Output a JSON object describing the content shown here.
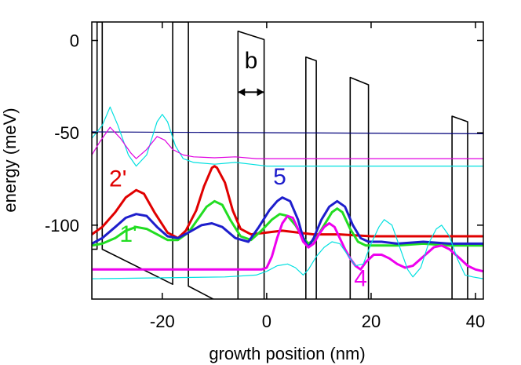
{
  "chart_data": {
    "type": "line",
    "title": "",
    "xlabel": "growth position (nm)",
    "ylabel": "energy (meV)",
    "xlim": [
      -33.5,
      41.5
    ],
    "ylim": [
      -140,
      10
    ],
    "x_ticks": [
      -20,
      0,
      20,
      40
    ],
    "x_tick_labels": [
      "-20",
      "0",
      "20",
      "40"
    ],
    "y_ticks": [
      0,
      -50,
      -100
    ],
    "y_tick_labels": [
      "0",
      "-50",
      "-100"
    ],
    "grid": false,
    "legend": "none",
    "annotations": {
      "width_label": "b",
      "state_labels": [
        {
          "text": "2'",
          "x": -28.5,
          "y": -79,
          "color": "#e00000"
        },
        {
          "text": "1'",
          "x": -26.5,
          "y": -109,
          "color": "#22dd22"
        },
        {
          "text": "5",
          "x": 2.5,
          "y": -78,
          "color": "#1e1ecc"
        },
        {
          "text": "4",
          "x": 18.0,
          "y": -133,
          "color": "#ee00ee"
        }
      ]
    },
    "series": [
      {
        "role": "conduction band profile",
        "color": "#000000",
        "points": [
          [
            -33.5,
            -140
          ],
          [
            -33.5,
            -113
          ],
          [
            -32.5,
            -113
          ],
          [
            -32.5,
            10
          ],
          [
            -31.5,
            10
          ],
          [
            -31.5,
            -113
          ],
          [
            -18,
            -132
          ],
          [
            -18,
            10
          ],
          [
            -15,
            10
          ],
          [
            -15,
            -133
          ],
          [
            -5.5,
            -147
          ],
          [
            -5.5,
            5
          ],
          [
            -0.5,
            0.5
          ],
          [
            -0.5,
            -150
          ],
          [
            7.5,
            -150
          ],
          [
            7.5,
            -9
          ],
          [
            9.5,
            -11
          ],
          [
            9.5,
            -150
          ],
          [
            16,
            -150
          ],
          [
            16,
            -20
          ],
          [
            19.5,
            -24
          ],
          [
            19.5,
            -150
          ],
          [
            35.5,
            -150
          ],
          [
            35.5,
            -41
          ],
          [
            38.5,
            -44
          ],
          [
            38.5,
            -150
          ]
        ]
      },
      {
        "role": "level ~ -50 meV",
        "color": "#00007a",
        "points": [
          [
            -33.5,
            -49.5
          ],
          [
            41.5,
            -50.5
          ]
        ]
      },
      {
        "role": "level ~ -69 meV",
        "color": "#00e0e0",
        "points": [
          [
            -33.5,
            -53
          ],
          [
            -31.5,
            -46
          ],
          [
            -30,
            -36
          ],
          [
            -28.5,
            -46
          ],
          [
            -26.5,
            -62
          ],
          [
            -25,
            -68
          ],
          [
            -23,
            -62
          ],
          [
            -21,
            -44
          ],
          [
            -20,
            -40
          ],
          [
            -19,
            -44
          ],
          [
            -17.5,
            -57
          ],
          [
            -16,
            -64
          ],
          [
            -14,
            -66
          ],
          [
            -10,
            -67
          ],
          [
            -6,
            -66
          ],
          [
            -3,
            -67
          ],
          [
            0,
            -68
          ],
          [
            41.5,
            -68
          ]
        ]
      },
      {
        "role": "level ~ -64 meV",
        "color": "#e000e0",
        "points": [
          [
            -33.5,
            -62
          ],
          [
            -32,
            -55
          ],
          [
            -30,
            -47
          ],
          [
            -28,
            -53
          ],
          [
            -26,
            -61
          ],
          [
            -25,
            -64
          ],
          [
            -23,
            -59
          ],
          [
            -21,
            -52
          ],
          [
            -19.5,
            -54
          ],
          [
            -18,
            -59
          ],
          [
            -16,
            -62
          ],
          [
            -14,
            -63
          ],
          [
            -10,
            -63.5
          ],
          [
            -6,
            -63
          ],
          [
            -2,
            -64
          ],
          [
            0,
            -64
          ],
          [
            41.5,
            -64
          ]
        ]
      },
      {
        "role": "state 2'",
        "color": "#e00000",
        "points": [
          [
            -33.5,
            -105
          ],
          [
            -31.5,
            -101
          ],
          [
            -29,
            -93
          ],
          [
            -27,
            -85
          ],
          [
            -25,
            -81
          ],
          [
            -23.5,
            -83
          ],
          [
            -21.5,
            -93
          ],
          [
            -19,
            -104
          ],
          [
            -17,
            -107
          ],
          [
            -15.5,
            -103
          ],
          [
            -13.5,
            -92
          ],
          [
            -12,
            -79
          ],
          [
            -10.5,
            -69
          ],
          [
            -10,
            -68
          ],
          [
            -9.5,
            -69
          ],
          [
            -8,
            -77
          ],
          [
            -6.5,
            -92
          ],
          [
            -5,
            -102
          ],
          [
            -3,
            -105
          ],
          [
            0,
            -104
          ],
          [
            3,
            -103
          ],
          [
            6,
            -104
          ],
          [
            9,
            -105
          ],
          [
            14,
            -105
          ],
          [
            20,
            -106
          ],
          [
            30,
            -106
          ],
          [
            41.5,
            -106
          ]
        ]
      },
      {
        "role": "state 1'",
        "color": "#22dd22",
        "points": [
          [
            -33.5,
            -111
          ],
          [
            -31.5,
            -110
          ],
          [
            -29,
            -107
          ],
          [
            -27,
            -103
          ],
          [
            -25,
            -101
          ],
          [
            -23,
            -102
          ],
          [
            -21,
            -105
          ],
          [
            -19,
            -108
          ],
          [
            -17,
            -108
          ],
          [
            -15,
            -104
          ],
          [
            -13,
            -96
          ],
          [
            -11.5,
            -90
          ],
          [
            -10,
            -87
          ],
          [
            -8.5,
            -89
          ],
          [
            -7,
            -97
          ],
          [
            -5,
            -106
          ],
          [
            -3,
            -108
          ],
          [
            -1,
            -103
          ],
          [
            1,
            -97
          ],
          [
            2.5,
            -94
          ],
          [
            4,
            -95
          ],
          [
            5.5,
            -100
          ],
          [
            7,
            -107
          ],
          [
            8,
            -110
          ],
          [
            9.5,
            -107
          ],
          [
            11,
            -100
          ],
          [
            12.5,
            -93
          ],
          [
            13.5,
            -91
          ],
          [
            14.5,
            -93
          ],
          [
            16,
            -102
          ],
          [
            17.5,
            -109
          ],
          [
            19,
            -111
          ],
          [
            21,
            -111
          ],
          [
            25,
            -111
          ],
          [
            30,
            -110
          ],
          [
            35,
            -111
          ],
          [
            41.5,
            -111
          ]
        ]
      },
      {
        "role": "state 5",
        "color": "#1e1ecc",
        "points": [
          [
            -33.5,
            -110
          ],
          [
            -31.5,
            -107
          ],
          [
            -29,
            -101
          ],
          [
            -27,
            -96
          ],
          [
            -25,
            -94
          ],
          [
            -23,
            -95
          ],
          [
            -21,
            -101
          ],
          [
            -19,
            -106
          ],
          [
            -17,
            -107
          ],
          [
            -15,
            -104
          ],
          [
            -12.5,
            -100
          ],
          [
            -10.5,
            -99
          ],
          [
            -8.5,
            -101
          ],
          [
            -6,
            -107
          ],
          [
            -3.5,
            -109
          ],
          [
            -1.5,
            -101
          ],
          [
            0.5,
            -92
          ],
          [
            2,
            -87
          ],
          [
            3,
            -85
          ],
          [
            4.5,
            -87
          ],
          [
            6,
            -97
          ],
          [
            7,
            -107
          ],
          [
            8,
            -112
          ],
          [
            9,
            -107
          ],
          [
            10.5,
            -97
          ],
          [
            12,
            -90
          ],
          [
            13.5,
            -87
          ],
          [
            15,
            -90
          ],
          [
            16.5,
            -100
          ],
          [
            18,
            -107
          ],
          [
            19.5,
            -109
          ],
          [
            22,
            -109
          ],
          [
            25,
            -110
          ],
          [
            30,
            -109
          ],
          [
            35,
            -110
          ],
          [
            41.5,
            -110
          ]
        ]
      },
      {
        "role": "state 4",
        "color": "#ee00ee",
        "points": [
          [
            -33.5,
            -124
          ],
          [
            -5,
            -124
          ],
          [
            -1,
            -124
          ],
          [
            0,
            -123
          ],
          [
            1,
            -117
          ],
          [
            2,
            -107
          ],
          [
            3,
            -99
          ],
          [
            4,
            -95
          ],
          [
            5,
            -96
          ],
          [
            6,
            -102
          ],
          [
            7,
            -109
          ],
          [
            8,
            -112
          ],
          [
            9,
            -110
          ],
          [
            10,
            -105
          ],
          [
            11,
            -101
          ],
          [
            12,
            -99
          ],
          [
            13,
            -101
          ],
          [
            14,
            -107
          ],
          [
            15,
            -113
          ],
          [
            16,
            -118
          ],
          [
            17,
            -122
          ],
          [
            18,
            -124
          ],
          [
            19,
            -120
          ],
          [
            20.5,
            -116
          ],
          [
            22,
            -116
          ],
          [
            23.5,
            -118
          ],
          [
            25,
            -121
          ],
          [
            26.5,
            -123
          ],
          [
            28,
            -122
          ],
          [
            30,
            -117
          ],
          [
            32,
            -112
          ],
          [
            33.5,
            -111
          ],
          [
            35,
            -113
          ],
          [
            37,
            -118
          ],
          [
            38.5,
            -122
          ],
          [
            40,
            -124
          ],
          [
            41.5,
            -125
          ]
        ]
      },
      {
        "role": "level ~ -129 meV",
        "color": "#00e0e0",
        "points": [
          [
            -33.5,
            -129
          ],
          [
            -8,
            -128
          ],
          [
            -2,
            -127
          ],
          [
            0,
            -125
          ],
          [
            2,
            -122
          ],
          [
            4,
            -121
          ],
          [
            5.5,
            -123
          ],
          [
            7,
            -127
          ],
          [
            8,
            -124
          ],
          [
            9.5,
            -117
          ],
          [
            11,
            -112
          ],
          [
            12.5,
            -109
          ],
          [
            14,
            -110
          ],
          [
            15.5,
            -116
          ],
          [
            17,
            -122
          ],
          [
            18.5,
            -121
          ],
          [
            20,
            -110
          ],
          [
            21.5,
            -101
          ],
          [
            22.5,
            -97
          ],
          [
            24,
            -100
          ],
          [
            25.5,
            -112
          ],
          [
            27,
            -124
          ],
          [
            28,
            -128
          ],
          [
            29.5,
            -123
          ],
          [
            31,
            -110
          ],
          [
            32.5,
            -102
          ],
          [
            33.5,
            -100
          ],
          [
            35,
            -106
          ],
          [
            36.5,
            -118
          ],
          [
            38,
            -127
          ],
          [
            39.5,
            -128
          ],
          [
            41.5,
            -129
          ]
        ]
      }
    ]
  }
}
